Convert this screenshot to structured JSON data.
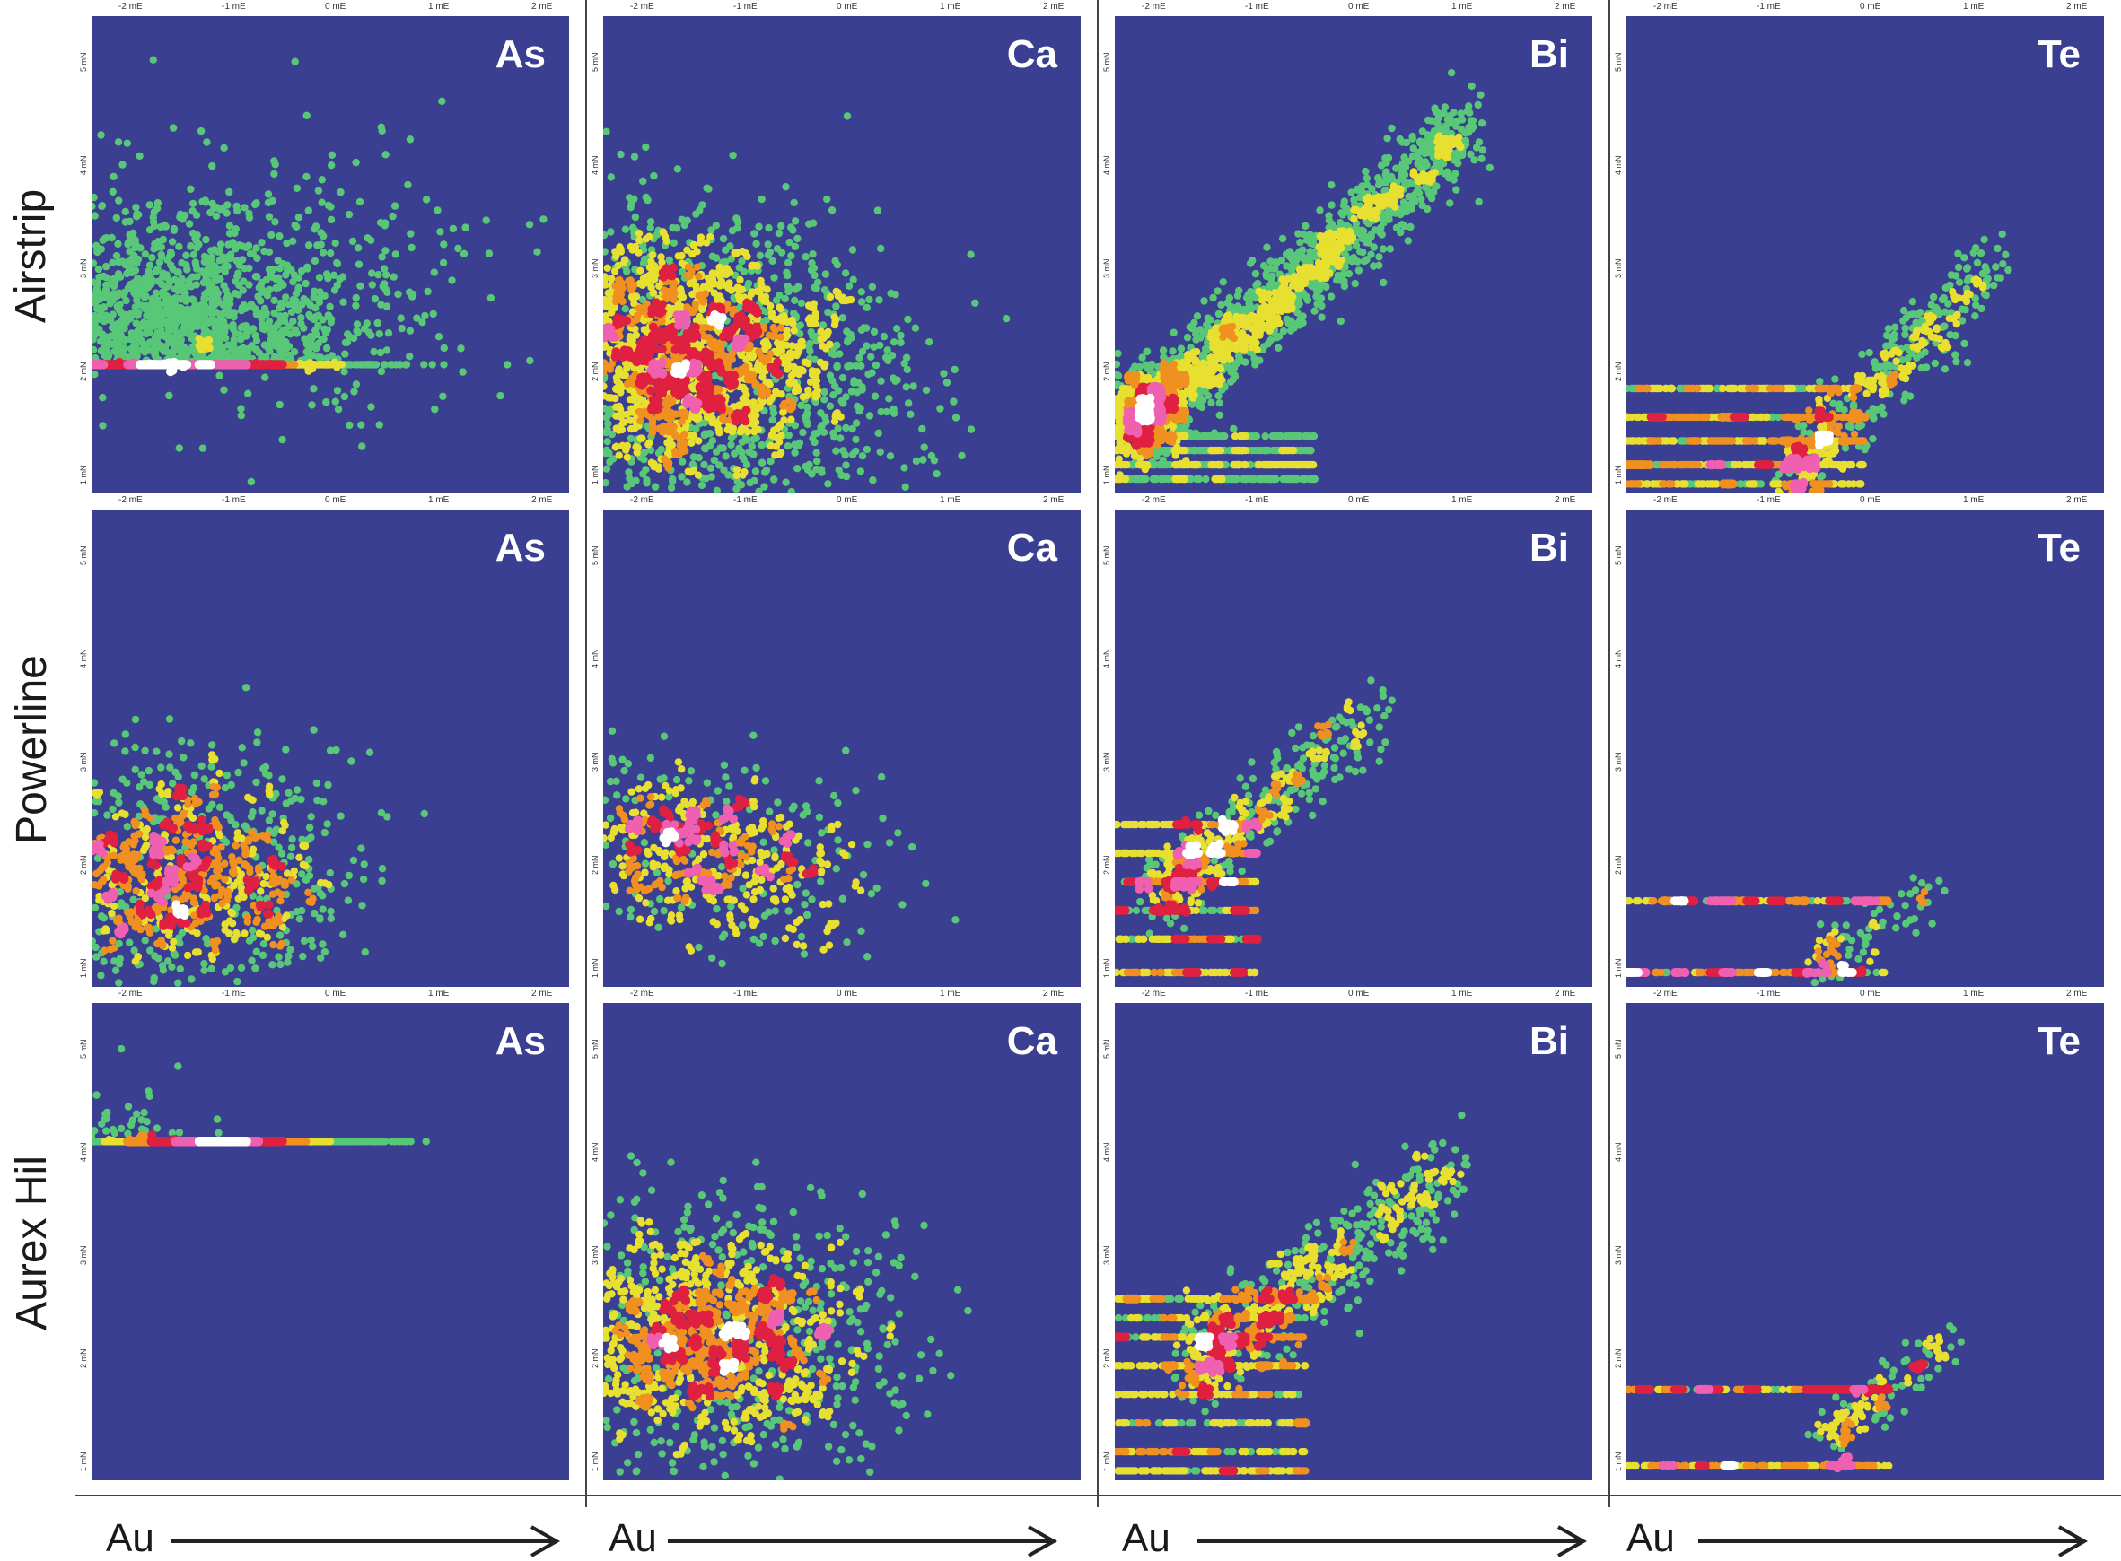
{
  "rows": [
    "Airstrip",
    "Powerline",
    "Aurex Hil"
  ],
  "columns": [
    "As",
    "Ca",
    "Bi",
    "Te"
  ],
  "x_axis_label": "Au",
  "x_ticks": [
    "-2 mE",
    "-1 mE",
    "0 mE",
    "1 mE",
    "2 mE"
  ],
  "y_ticks_left": [
    "1 mN",
    "2 mN",
    "3 mN",
    "4 mN",
    "5 mN"
  ],
  "colors": {
    "background": "#3b3f91",
    "low": "#58c878",
    "mid_low": "#e8e030",
    "mid": "#f09020",
    "high": "#e02040",
    "peak": "#ffffff"
  },
  "chart_data": [
    {
      "type": "heatmap",
      "row": "Airstrip",
      "element": "As",
      "x_range": [
        -2.2,
        2.4
      ],
      "y_range": [
        0.7,
        5.3
      ],
      "density": "broad cloud, peak near Au -1.6, As 2",
      "trend": "none"
    },
    {
      "type": "heatmap",
      "row": "Airstrip",
      "element": "Ca",
      "x_range": [
        -2.2,
        2.4
      ],
      "y_range": [
        -1.3,
        3.3
      ],
      "density": "wide cloud, peak near Au -1.7, Ca 0",
      "trend": "none"
    },
    {
      "type": "heatmap",
      "row": "Airstrip",
      "element": "Bi",
      "x_range": [
        -2.2,
        2.4
      ],
      "y_range": [
        -1.0,
        3.6
      ],
      "density": "strong positive linear trend",
      "trend": "positive"
    },
    {
      "type": "heatmap",
      "row": "Airstrip",
      "element": "Te",
      "x_range": [
        -2.2,
        2.4
      ],
      "y_range": [
        -0.8,
        3.8
      ],
      "density": "horizontal detection-limit bands with positive tail",
      "trend": "positive"
    },
    {
      "type": "heatmap",
      "row": "Powerline",
      "element": "As",
      "x_range": [
        -2.2,
        2.4
      ],
      "y_range": [
        0.7,
        5.3
      ],
      "density": "moderate cloud near Au -1.8, As 2",
      "trend": "none"
    },
    {
      "type": "heatmap",
      "row": "Powerline",
      "element": "Ca",
      "x_range": [
        -2.2,
        2.4
      ],
      "y_range": [
        -1.3,
        3.3
      ],
      "density": "sparse cloud near Au -1.7, Ca 0",
      "trend": "weak positive"
    },
    {
      "type": "heatmap",
      "row": "Powerline",
      "element": "Bi",
      "x_range": [
        -2.2,
        2.4
      ],
      "y_range": [
        -1.0,
        3.6
      ],
      "density": "detection bands plus positive trend",
      "trend": "positive"
    },
    {
      "type": "heatmap",
      "row": "Powerline",
      "element": "Te",
      "x_range": [
        -2.2,
        2.4
      ],
      "y_range": [
        -0.8,
        3.8
      ],
      "density": "sparse detection bands",
      "trend": "positive"
    },
    {
      "type": "heatmap",
      "row": "Aurex Hil",
      "element": "As",
      "x_range": [
        -2.2,
        2.4
      ],
      "y_range": [
        0.7,
        5.3
      ],
      "density": "elongated positive cloud",
      "trend": "positive"
    },
    {
      "type": "heatmap",
      "row": "Aurex Hil",
      "element": "Ca",
      "x_range": [
        -2.2,
        2.4
      ],
      "y_range": [
        -1.3,
        3.3
      ],
      "density": "cloud near Au -1.3, Ca 0",
      "trend": "none"
    },
    {
      "type": "heatmap",
      "row": "Aurex Hil",
      "element": "Bi",
      "x_range": [
        -2.2,
        2.4
      ],
      "y_range": [
        -1.0,
        3.6
      ],
      "density": "detection bands plus positive trend",
      "trend": "positive"
    },
    {
      "type": "heatmap",
      "row": "Aurex Hil",
      "element": "Te",
      "x_range": [
        -2.2,
        2.4
      ],
      "y_range": [
        -0.8,
        3.8
      ],
      "density": "sparse detection bands with positive tail",
      "trend": "positive"
    }
  ]
}
